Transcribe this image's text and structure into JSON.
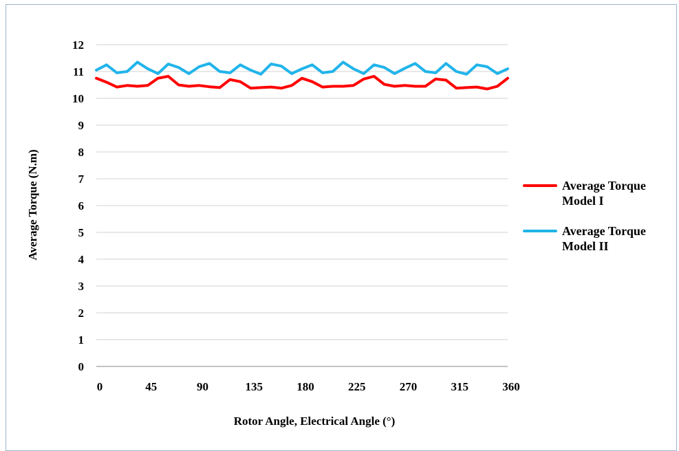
{
  "chart_data": {
    "type": "line",
    "title": "",
    "xlabel": "Rotor Angle, Electrical Angle (°)",
    "ylabel": "Average Torque (N.m)",
    "xlim": [
      0,
      360
    ],
    "ylim": [
      0,
      12
    ],
    "x_ticks": [
      "0",
      "45",
      "90",
      "135",
      "180",
      "225",
      "270",
      "315",
      "360"
    ],
    "y_ticks": [
      "0",
      "1",
      "2",
      "3",
      "4",
      "5",
      "6",
      "7",
      "8",
      "9",
      "10",
      "11",
      "12"
    ],
    "grid": "horizontal",
    "legend_position": "right",
    "x": [
      0,
      9,
      18,
      27,
      36,
      45,
      54,
      63,
      72,
      81,
      90,
      99,
      108,
      117,
      126,
      135,
      144,
      153,
      162,
      171,
      180,
      189,
      198,
      207,
      216,
      225,
      234,
      243,
      252,
      261,
      270,
      279,
      288,
      297,
      306,
      315,
      324,
      333,
      342,
      351,
      360
    ],
    "series": [
      {
        "name": "Average Torque Model I",
        "color": "#ff0000",
        "values": [
          10.75,
          10.6,
          10.42,
          10.48,
          10.45,
          10.48,
          10.75,
          10.82,
          10.5,
          10.45,
          10.48,
          10.43,
          10.4,
          10.7,
          10.62,
          10.38,
          10.4,
          10.42,
          10.38,
          10.48,
          10.75,
          10.62,
          10.42,
          10.45,
          10.45,
          10.48,
          10.72,
          10.82,
          10.52,
          10.45,
          10.48,
          10.45,
          10.45,
          10.72,
          10.68,
          10.38,
          10.4,
          10.42,
          10.35,
          10.45,
          10.75
        ]
      },
      {
        "name": "Average Torque Model II",
        "color": "#21b4ea",
        "values": [
          11.05,
          11.25,
          10.95,
          11.0,
          11.35,
          11.1,
          10.92,
          11.28,
          11.15,
          10.92,
          11.18,
          11.3,
          11.0,
          10.95,
          11.25,
          11.05,
          10.9,
          11.28,
          11.2,
          10.92,
          11.1,
          11.25,
          10.95,
          11.0,
          11.35,
          11.1,
          10.92,
          11.25,
          11.15,
          10.92,
          11.12,
          11.3,
          11.0,
          10.95,
          11.3,
          11.0,
          10.9,
          11.25,
          11.18,
          10.92,
          11.1
        ]
      }
    ]
  }
}
